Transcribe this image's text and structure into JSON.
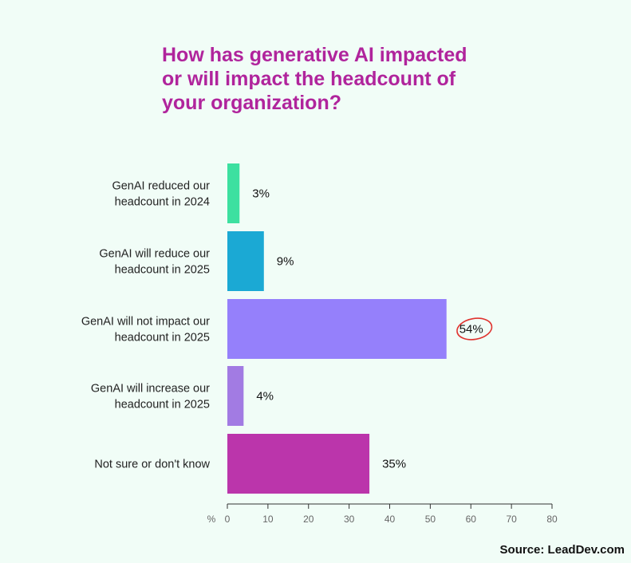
{
  "title_lines": [
    "How has generative AI impacted",
    "or will impact the headcount of",
    "your organization?"
  ],
  "source": "Source: LeadDev.com",
  "colors": {
    "title": "#b0249c",
    "highlight_circle": "#e0332f"
  },
  "chart_data": {
    "type": "bar",
    "orientation": "horizontal",
    "categories": [
      [
        "GenAI reduced our",
        "headcount in 2024"
      ],
      [
        "GenAI will reduce our",
        "headcount in 2025"
      ],
      [
        "GenAI will not impact our",
        "headcount in 2025"
      ],
      [
        "GenAI will increase our",
        "headcount in 2025"
      ],
      [
        "Not sure or don't know"
      ]
    ],
    "values": [
      3,
      9,
      54,
      4,
      35
    ],
    "value_labels": [
      "3%",
      "9%",
      "54%",
      "4%",
      "35%"
    ],
    "bar_colors": [
      "#3de0a0",
      "#1ba9d4",
      "#9580fb",
      "#a27be3",
      "#bb35ab"
    ],
    "highlighted_index": 2,
    "xlabel": "%",
    "xlim": [
      0,
      80
    ],
    "xticks": [
      0,
      10,
      20,
      30,
      40,
      50,
      60,
      70,
      80
    ],
    "grid": false,
    "legend": "none"
  }
}
